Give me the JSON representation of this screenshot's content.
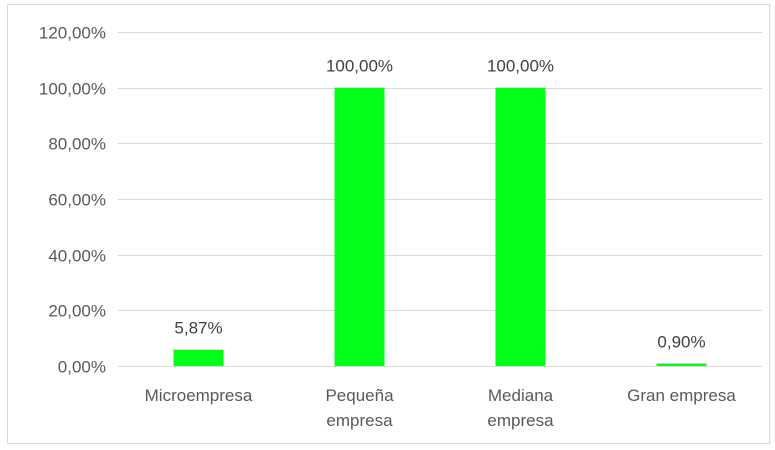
{
  "chart_data": {
    "type": "bar",
    "categories": [
      [
        "Microempresa"
      ],
      [
        "Pequeña",
        "empresa"
      ],
      [
        "Mediana",
        "empresa"
      ],
      [
        "Gran empresa"
      ]
    ],
    "values": [
      5.87,
      100.0,
      100.0,
      0.9
    ],
    "data_labels": [
      "5,87%",
      "100,00%",
      "100,00%",
      "0,90%"
    ],
    "yticks": [
      0,
      20,
      40,
      60,
      80,
      100,
      120
    ],
    "ytick_labels": [
      "0,00%",
      "20,00%",
      "40,00%",
      "60,00%",
      "80,00%",
      "100,00%",
      "120,00%"
    ],
    "ylim": [
      0,
      120
    ],
    "grid": true,
    "bar_color": "#00ff19",
    "grid_color": "#d9d9d9",
    "title": "",
    "xlabel": "",
    "ylabel": ""
  }
}
